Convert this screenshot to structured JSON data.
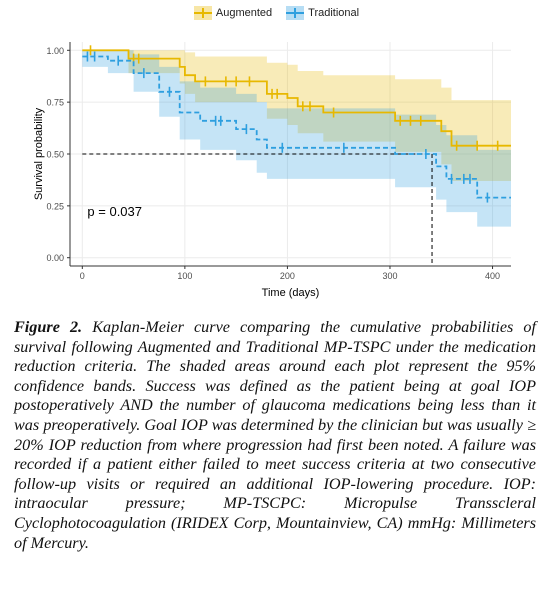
{
  "chart_data": {
    "type": "line",
    "step": true,
    "xlabel": "Time (days)",
    "ylabel": "Survival probability",
    "xlim": [
      -12,
      418
    ],
    "ylim": [
      -0.04,
      1.04
    ],
    "xticks": [
      0,
      100,
      200,
      300,
      400
    ],
    "yticks": [
      0.0,
      0.25,
      0.5,
      0.75,
      1.0
    ],
    "ytick_labels": [
      "0.00",
      "0.25",
      "0.50",
      "0.75",
      "1.00"
    ],
    "grid": true,
    "legend_position": "top",
    "annotation": "p = 0.037",
    "median_reference": {
      "y": 0.5,
      "x_end": 341
    },
    "series": [
      {
        "name": "Augmented",
        "color": "#E7B800",
        "steps": [
          [
            0,
            1.0
          ],
          [
            45,
            0.96
          ],
          [
            95,
            0.92
          ],
          [
            100,
            0.88
          ],
          [
            110,
            0.85
          ],
          [
            180,
            0.79
          ],
          [
            200,
            0.77
          ],
          [
            210,
            0.73
          ],
          [
            235,
            0.7
          ],
          [
            305,
            0.66
          ],
          [
            350,
            0.61
          ],
          [
            360,
            0.54
          ],
          [
            418,
            0.54
          ]
        ],
        "ci_upper": [
          [
            0,
            1.0
          ],
          [
            45,
            1.0
          ],
          [
            95,
            1.0
          ],
          [
            100,
            0.99
          ],
          [
            110,
            0.97
          ],
          [
            180,
            0.94
          ],
          [
            200,
            0.93
          ],
          [
            210,
            0.9
          ],
          [
            235,
            0.88
          ],
          [
            305,
            0.86
          ],
          [
            350,
            0.82
          ],
          [
            360,
            0.76
          ],
          [
            418,
            0.76
          ]
        ],
        "ci_lower": [
          [
            0,
            1.0
          ],
          [
            45,
            0.89
          ],
          [
            95,
            0.84
          ],
          [
            100,
            0.79
          ],
          [
            110,
            0.75
          ],
          [
            180,
            0.67
          ],
          [
            200,
            0.64
          ],
          [
            210,
            0.6
          ],
          [
            235,
            0.56
          ],
          [
            305,
            0.51
          ],
          [
            350,
            0.45
          ],
          [
            360,
            0.37
          ],
          [
            418,
            0.37
          ]
        ],
        "censored": [
          [
            8,
            1.0
          ],
          [
            50,
            0.96
          ],
          [
            55,
            0.96
          ],
          [
            120,
            0.85
          ],
          [
            140,
            0.85
          ],
          [
            150,
            0.85
          ],
          [
            163,
            0.85
          ],
          [
            185,
            0.79
          ],
          [
            190,
            0.79
          ],
          [
            215,
            0.73
          ],
          [
            222,
            0.73
          ],
          [
            245,
            0.7
          ],
          [
            310,
            0.66
          ],
          [
            320,
            0.66
          ],
          [
            330,
            0.66
          ],
          [
            365,
            0.54
          ],
          [
            385,
            0.54
          ],
          [
            405,
            0.54
          ]
        ]
      },
      {
        "name": "Traditional",
        "color": "#2E9FDF",
        "steps": [
          [
            0,
            0.97
          ],
          [
            25,
            0.95
          ],
          [
            50,
            0.89
          ],
          [
            75,
            0.8
          ],
          [
            95,
            0.7
          ],
          [
            115,
            0.66
          ],
          [
            150,
            0.62
          ],
          [
            170,
            0.57
          ],
          [
            180,
            0.53
          ],
          [
            305,
            0.5
          ],
          [
            345,
            0.44
          ],
          [
            355,
            0.38
          ],
          [
            385,
            0.29
          ],
          [
            418,
            0.29
          ]
        ],
        "ci_upper": [
          [
            0,
            1.0
          ],
          [
            25,
            1.0
          ],
          [
            50,
            0.98
          ],
          [
            75,
            0.92
          ],
          [
            95,
            0.85
          ],
          [
            115,
            0.82
          ],
          [
            150,
            0.79
          ],
          [
            170,
            0.75
          ],
          [
            180,
            0.72
          ],
          [
            305,
            0.69
          ],
          [
            345,
            0.64
          ],
          [
            355,
            0.59
          ],
          [
            385,
            0.52
          ],
          [
            418,
            0.52
          ]
        ],
        "ci_lower": [
          [
            0,
            0.92
          ],
          [
            25,
            0.89
          ],
          [
            50,
            0.8
          ],
          [
            75,
            0.68
          ],
          [
            95,
            0.57
          ],
          [
            115,
            0.52
          ],
          [
            150,
            0.47
          ],
          [
            170,
            0.41
          ],
          [
            180,
            0.38
          ],
          [
            305,
            0.34
          ],
          [
            345,
            0.28
          ],
          [
            355,
            0.22
          ],
          [
            385,
            0.15
          ],
          [
            418,
            0.15
          ]
        ],
        "censored": [
          [
            5,
            0.97
          ],
          [
            12,
            0.97
          ],
          [
            35,
            0.95
          ],
          [
            60,
            0.89
          ],
          [
            85,
            0.8
          ],
          [
            130,
            0.66
          ],
          [
            135,
            0.66
          ],
          [
            160,
            0.62
          ],
          [
            195,
            0.53
          ],
          [
            255,
            0.53
          ],
          [
            335,
            0.5
          ],
          [
            360,
            0.38
          ],
          [
            372,
            0.38
          ],
          [
            378,
            0.38
          ],
          [
            395,
            0.29
          ]
        ]
      }
    ]
  },
  "caption": {
    "label": "Figure 2.",
    "text": "Kaplan-Meier curve comparing the cumulative probabilities of survival following Augmented and Traditional MP-TSPC under the medication reduction criteria. The shaded areas around each plot represent the 95% confidence bands. Success was defined as the patient being at goal IOP postoperatively AND the number of glaucoma medications being less than it was preoperatively. Goal IOP was determined by the clinician but was usually ≥ 20% IOP reduction from where progression had first been noted. A failure was recorded if a patient either failed to meet success criteria at two consecutive follow-up visits or required an additional IOP-lowering procedure. IOP: intraocular pressure; MP-TSCPC: Micropulse Transscleral Cyclophotocoagulation (IRIDEX Corp, Mountainview, CA) mmHg: Millimeters of Mercury."
  }
}
